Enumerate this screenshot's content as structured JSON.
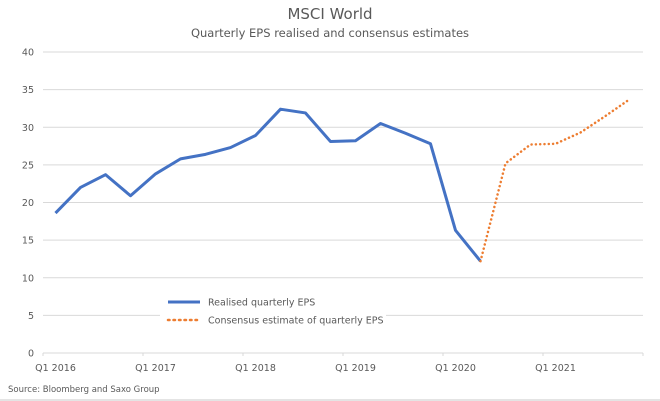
{
  "chart_data": {
    "type": "line",
    "title": "MSCI World",
    "subtitle": "Quarterly EPS realised and consensus estimates",
    "xlabel": "",
    "ylabel": "",
    "ylim": [
      0,
      40
    ],
    "yticks": [
      0,
      5,
      10,
      15,
      20,
      25,
      30,
      35,
      40
    ],
    "grid": true,
    "legend_position": "bottom-left",
    "x": [
      "Q1 2016",
      "Q2 2016",
      "Q3 2016",
      "Q4 2016",
      "Q1 2017",
      "Q2 2017",
      "Q3 2017",
      "Q4 2017",
      "Q1 2018",
      "Q2 2018",
      "Q3 2018",
      "Q4 2018",
      "Q1 2019",
      "Q2 2019",
      "Q3 2019",
      "Q4 2019",
      "Q1 2020",
      "Q2 2020",
      "Q3 2020",
      "Q4 2020",
      "Q1 2021",
      "Q2 2021",
      "Q3 2021",
      "Q4 2021"
    ],
    "xtick_labels": [
      {
        "index": 0,
        "label": "Q1 2016"
      },
      {
        "index": 4,
        "label": "Q1 2017"
      },
      {
        "index": 8,
        "label": "Q1 2018"
      },
      {
        "index": 12,
        "label": "Q1 2019"
      },
      {
        "index": 16,
        "label": "Q1 2020"
      },
      {
        "index": 20,
        "label": "Q1 2021"
      }
    ],
    "series": [
      {
        "name": "Realised quarterly EPS",
        "style": "solid",
        "color": "#4472C4",
        "values": [
          18.6,
          22.0,
          23.7,
          20.9,
          23.8,
          25.8,
          26.4,
          27.3,
          28.9,
          32.4,
          31.9,
          28.1,
          28.2,
          30.5,
          29.2,
          27.8,
          16.3,
          12.2,
          null,
          null,
          null,
          null,
          null,
          null
        ]
      },
      {
        "name": "Consensus estimate of quarterly EPS",
        "style": "dotted",
        "color": "#ED7D31",
        "values": [
          null,
          null,
          null,
          null,
          null,
          null,
          null,
          null,
          null,
          null,
          null,
          null,
          null,
          null,
          null,
          null,
          null,
          12.2,
          25.2,
          27.7,
          27.8,
          29.3,
          31.5,
          33.8
        ]
      }
    ],
    "source": "Source: Bloomberg and Saxo Group"
  }
}
